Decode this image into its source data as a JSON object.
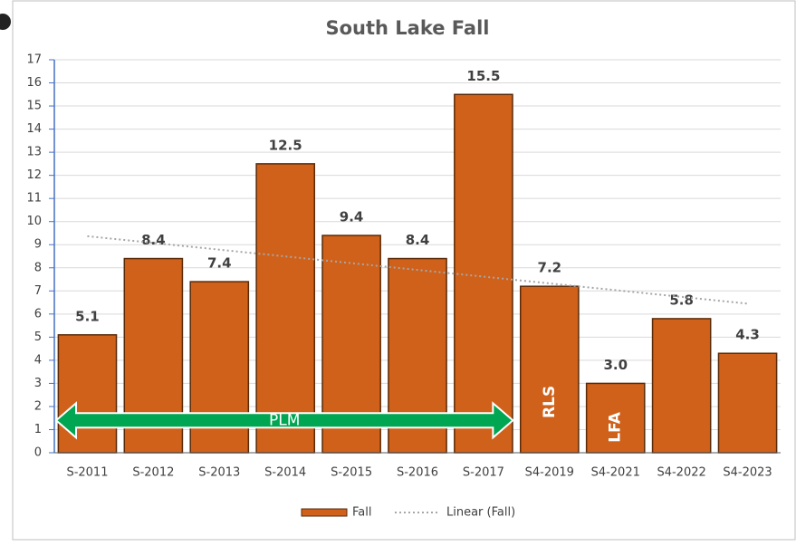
{
  "chart_data": {
    "type": "bar",
    "title": "South Lake Fall",
    "categories": [
      "S-2011",
      "S-2012",
      "S-2013",
      "S-2014",
      "S-2015",
      "S-2016",
      "S-2017",
      "S4-2019",
      "S4-2021",
      "S4-2022",
      "S4-2023"
    ],
    "series": [
      {
        "name": "Fall",
        "color": "#d0611a",
        "values": [
          5.1,
          8.4,
          7.4,
          12.5,
          9.4,
          8.4,
          15.5,
          7.2,
          3.0,
          5.8,
          4.3
        ],
        "value_labels": [
          "5.1",
          "8.4",
          "7.4",
          "12.5",
          "9.4",
          "8.4",
          "15.5",
          "7.2",
          "3.0",
          "5.8",
          "4.3"
        ]
      }
    ],
    "trendline": {
      "name": "Linear (Fall)",
      "color": "#a6a6a6"
    },
    "annotations": [
      "PLM",
      "RLS",
      "LFA"
    ],
    "ylim": [
      0,
      17
    ],
    "yticks": [
      0,
      1,
      2,
      3,
      4,
      5,
      6,
      7,
      8,
      9,
      10,
      11,
      12,
      13,
      14,
      15,
      16,
      17
    ],
    "grid": true,
    "legend": "bottom"
  }
}
